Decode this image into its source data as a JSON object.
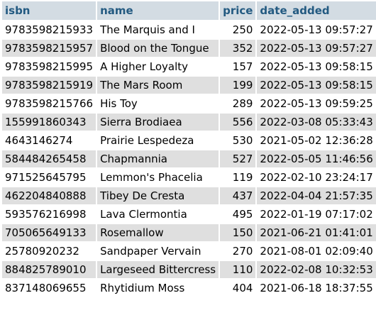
{
  "table": {
    "columns": [
      "isbn",
      "name",
      "price",
      "date_added"
    ],
    "rows": [
      {
        "isbn": "9783598215933",
        "name": "The Marquis and I",
        "price": "250",
        "date_added": "2022-05-13 09:57:27"
      },
      {
        "isbn": "9783598215957",
        "name": "Blood on the Tongue",
        "price": "352",
        "date_added": "2022-05-13 09:57:27"
      },
      {
        "isbn": "9783598215995",
        "name": "A Higher Loyalty",
        "price": "157",
        "date_added": "2022-05-13 09:58:15"
      },
      {
        "isbn": "9783598215919",
        "name": "The Mars Room",
        "price": "199",
        "date_added": "2022-05-13 09:58:15"
      },
      {
        "isbn": "9783598215766",
        "name": "His Toy",
        "price": "289",
        "date_added": "2022-05-13 09:59:25"
      },
      {
        "isbn": "155991860343",
        "name": "Sierra Brodiaea",
        "price": "556",
        "date_added": "2022-03-08 05:33:43"
      },
      {
        "isbn": "4643146274",
        "name": "Prairie Lespedeza",
        "price": "530",
        "date_added": "2021-05-02 12:36:28"
      },
      {
        "isbn": "584484265458",
        "name": "Chapmannia",
        "price": "527",
        "date_added": "2022-05-05 11:46:56"
      },
      {
        "isbn": "971525645795",
        "name": "Lemmon's Phacelia",
        "price": "119",
        "date_added": "2022-02-10 23:24:17"
      },
      {
        "isbn": "462204840888",
        "name": "Tibey De Cresta",
        "price": "437",
        "date_added": "2022-04-04 21:57:35"
      },
      {
        "isbn": "593576216998",
        "name": "Lava Clermontia",
        "price": "495",
        "date_added": "2022-01-19 07:17:02"
      },
      {
        "isbn": "705065649133",
        "name": "Rosemallow",
        "price": "150",
        "date_added": "2021-06-21 01:41:01"
      },
      {
        "isbn": "25780920232",
        "name": "Sandpaper Vervain",
        "price": "270",
        "date_added": "2021-08-01 02:09:40"
      },
      {
        "isbn": "884825789010",
        "name": "Largeseed Bittercress",
        "price": "110",
        "date_added": "2022-02-08 10:32:53"
      },
      {
        "isbn": "837148069655",
        "name": "Rhytidium Moss",
        "price": "404",
        "date_added": "2021-06-18 18:37:55"
      }
    ]
  },
  "colors": {
    "header_bg": "#d3dce3",
    "header_text": "#235a81",
    "row_odd": "#ffffff",
    "row_even": "#dfdfdf"
  }
}
